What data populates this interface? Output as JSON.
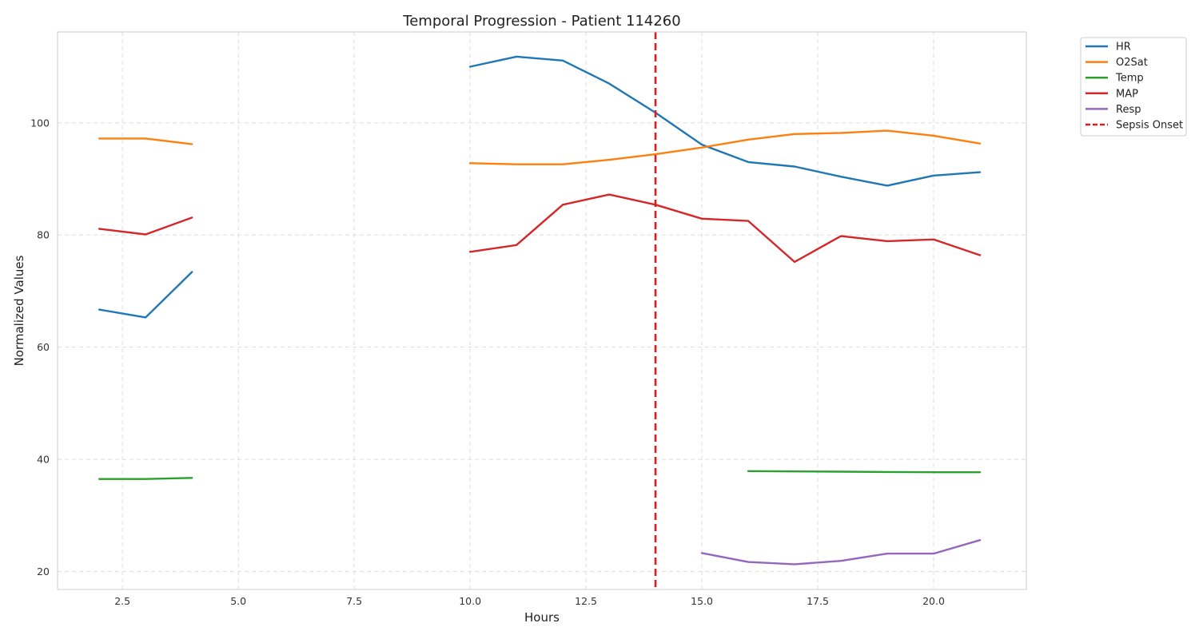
{
  "chart_data": {
    "type": "line",
    "title": "Temporal Progression - Patient 114260",
    "xlabel": "Hours",
    "ylabel": "Normalized Values",
    "xlim": [
      1.1,
      22.0
    ],
    "ylim": [
      16.8,
      116.2
    ],
    "xticks": [
      2.5,
      5.0,
      7.5,
      10.0,
      12.5,
      15.0,
      17.5,
      20.0
    ],
    "xtick_labels": [
      "2.5",
      "5.0",
      "7.5",
      "10.0",
      "12.5",
      "15.0",
      "17.5",
      "20.0"
    ],
    "yticks": [
      20,
      40,
      60,
      80,
      100
    ],
    "ytick_labels": [
      "20",
      "40",
      "60",
      "80",
      "100"
    ],
    "grid": true,
    "legend_position": "outside-top-right",
    "series": [
      {
        "name": "HR",
        "color": "#1f77b4",
        "segments": [
          [
            [
              2,
              66.7
            ],
            [
              3,
              65.3
            ],
            [
              4,
              73.4
            ]
          ],
          [
            [
              10,
              110.0
            ],
            [
              11,
              111.8
            ],
            [
              12,
              111.1
            ],
            [
              13,
              107.0
            ],
            [
              14,
              101.8
            ],
            [
              15,
              96.1
            ],
            [
              16,
              93.0
            ],
            [
              17,
              92.2
            ],
            [
              18,
              90.4
            ],
            [
              19,
              88.8
            ],
            [
              20,
              90.6
            ],
            [
              21,
              91.2
            ]
          ]
        ]
      },
      {
        "name": "O2Sat",
        "color": "#ff7f0e",
        "segments": [
          [
            [
              2,
              97.2
            ],
            [
              3,
              97.2
            ],
            [
              4,
              96.2
            ]
          ],
          [
            [
              10,
              92.8
            ],
            [
              11,
              92.6
            ],
            [
              12,
              92.6
            ],
            [
              13,
              93.4
            ],
            [
              14,
              94.4
            ],
            [
              15,
              95.6
            ],
            [
              16,
              97.0
            ],
            [
              17,
              98.0
            ],
            [
              18,
              98.2
            ],
            [
              19,
              98.6
            ],
            [
              20,
              97.7
            ],
            [
              21,
              96.3
            ]
          ]
        ]
      },
      {
        "name": "Temp",
        "color": "#2ca02c",
        "segments": [
          [
            [
              2,
              36.5
            ],
            [
              3,
              36.5
            ],
            [
              4,
              36.7
            ]
          ],
          [
            [
              16,
              37.9
            ],
            [
              17,
              37.85
            ],
            [
              18,
              37.8
            ],
            [
              19,
              37.75
            ],
            [
              20,
              37.7
            ],
            [
              21,
              37.7
            ]
          ]
        ]
      },
      {
        "name": "MAP",
        "color": "#d62728",
        "segments": [
          [
            [
              2,
              81.1
            ],
            [
              3,
              80.1
            ],
            [
              4,
              83.1
            ]
          ],
          [
            [
              10,
              77.0
            ],
            [
              11,
              78.2
            ],
            [
              12,
              85.4
            ],
            [
              13,
              87.2
            ],
            [
              14,
              85.4
            ],
            [
              15,
              82.9
            ],
            [
              16,
              82.5
            ],
            [
              17,
              75.2
            ],
            [
              18,
              79.8
            ],
            [
              19,
              78.9
            ],
            [
              20,
              79.2
            ],
            [
              21,
              76.4
            ]
          ]
        ]
      },
      {
        "name": "Resp",
        "color": "#9467bd",
        "segments": [
          [
            [
              15,
              23.3
            ],
            [
              16,
              21.7
            ],
            [
              17,
              21.3
            ],
            [
              18,
              21.9
            ],
            [
              19,
              23.2
            ],
            [
              20,
              23.2
            ],
            [
              21,
              25.6
            ]
          ]
        ]
      }
    ],
    "vlines": [
      {
        "name": "Sepsis Onset",
        "x": 14,
        "color": "#e31a1c",
        "style": "dashed"
      }
    ]
  }
}
